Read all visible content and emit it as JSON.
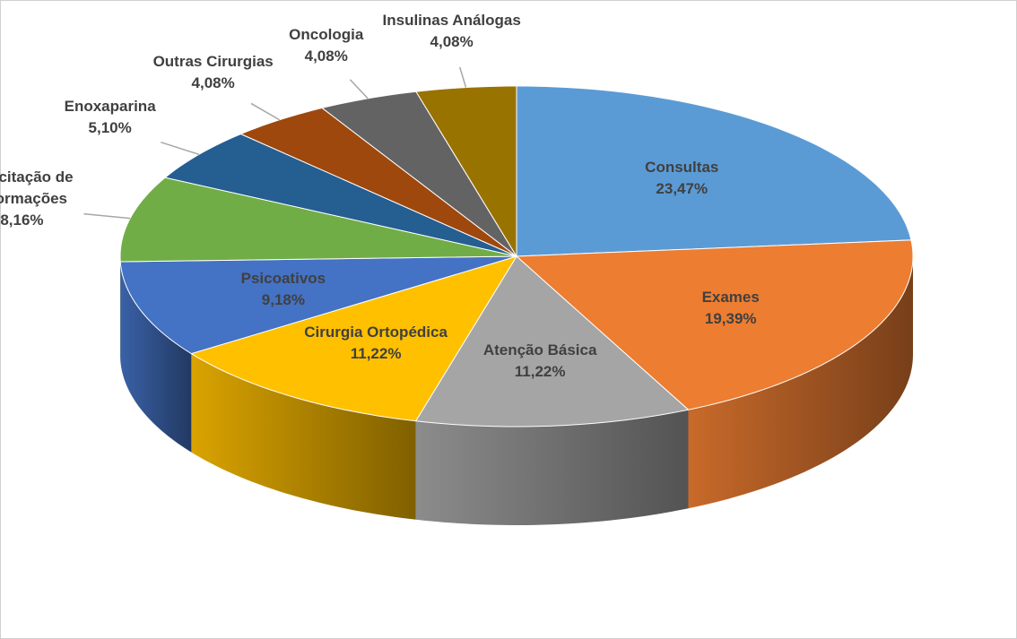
{
  "chart_data": {
    "type": "pie3d",
    "categories": [
      "Consultas",
      "Exames",
      "Atenção Básica",
      "Cirurgia Ortopédica",
      "Psicoativos",
      "Solicitação de informações",
      "Enoxaparina",
      "Outras Cirurgias",
      "Oncologia",
      "Insulinas Análogas"
    ],
    "values": [
      23.47,
      19.39,
      11.22,
      11.22,
      9.18,
      8.16,
      5.1,
      4.08,
      4.08,
      4.08
    ],
    "value_labels": [
      "23,47%",
      "19,39%",
      "11,22%",
      "11,22%",
      "9,18%",
      "8,16%",
      "5,10%",
      "4,08%",
      "4,08%",
      "4,08%"
    ],
    "colors": [
      "#5b9bd5",
      "#ed7d31",
      "#a5a5a5",
      "#ffc000",
      "#4472c4",
      "#70ad47",
      "#255e91",
      "#9e480e",
      "#636363",
      "#997300"
    ]
  }
}
